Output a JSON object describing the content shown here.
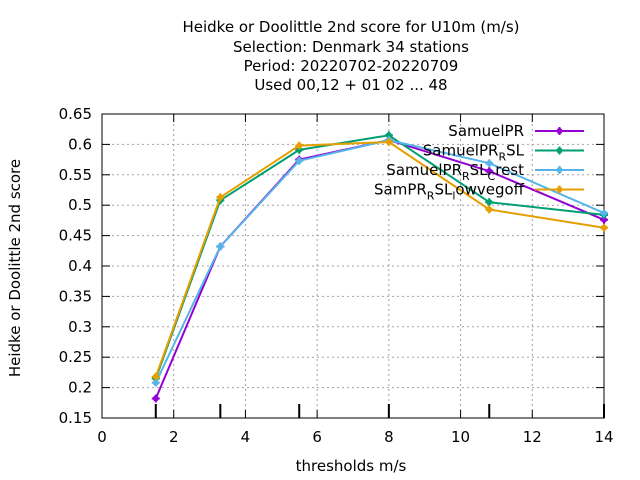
{
  "chart_data": {
    "type": "line",
    "title_lines": [
      "Heidke or Doolittle 2nd score  for U10m (m/s)",
      "Selection: Denmark     34 stations",
      "Period: 20220702-20220709",
      "Used  00,12  + 01 02 ... 48"
    ],
    "xlabel": "thresholds m/s",
    "ylabel": "Heidke or Doolittle 2nd score",
    "xlim": [
      0,
      14
    ],
    "ylim": [
      0.15,
      0.65
    ],
    "xticks": [
      0,
      2,
      4,
      6,
      8,
      10,
      12,
      14
    ],
    "yticks": [
      0.15,
      0.2,
      0.25,
      0.3,
      0.35,
      0.4,
      0.45,
      0.5,
      0.55,
      0.6,
      0.65
    ],
    "grid": true,
    "legend_position": "top-right",
    "threshold_markers": [
      1.5,
      3.3,
      5.5,
      8.0,
      10.8,
      14.0
    ],
    "series": [
      {
        "name": "SamuelPR",
        "name_parts": [
          {
            "text": "SamuelPR",
            "sub": false
          }
        ],
        "color": "#9400d3",
        "x": [
          1.5,
          3.3,
          5.5,
          8.0,
          10.8,
          14.0
        ],
        "values": [
          0.182,
          0.432,
          0.575,
          0.607,
          0.556,
          0.476
        ]
      },
      {
        "name": "SamuelPR_RSL",
        "name_parts": [
          {
            "text": "SamuelPR",
            "sub": false
          },
          {
            "text": "R",
            "sub": true
          },
          {
            "text": "SL",
            "sub": false
          }
        ],
        "color": "#009e73",
        "x": [
          1.5,
          3.3,
          5.5,
          8.0,
          10.8,
          14.0
        ],
        "values": [
          0.215,
          0.508,
          0.591,
          0.615,
          0.505,
          0.484
        ]
      },
      {
        "name": "SamuelPR_RSL_Crest",
        "name_parts": [
          {
            "text": "SamuelPR",
            "sub": false
          },
          {
            "text": "R",
            "sub": true
          },
          {
            "text": "SL",
            "sub": false
          },
          {
            "text": "C",
            "sub": true
          },
          {
            "text": "rest",
            "sub": false
          }
        ],
        "color": "#56b4e9",
        "x": [
          1.5,
          3.3,
          5.5,
          8.0,
          10.8,
          14.0
        ],
        "values": [
          0.208,
          0.432,
          0.573,
          0.607,
          0.569,
          0.487
        ]
      },
      {
        "name": "SamPR_RSL_lowvegoff",
        "name_parts": [
          {
            "text": "SamPR",
            "sub": false
          },
          {
            "text": "R",
            "sub": true
          },
          {
            "text": "SL",
            "sub": false
          },
          {
            "text": "l",
            "sub": true
          },
          {
            "text": "owvegoff",
            "sub": false
          }
        ],
        "color": "#e69f00",
        "x": [
          1.5,
          3.3,
          5.5,
          8.0,
          10.8,
          14.0
        ],
        "values": [
          0.218,
          0.513,
          0.598,
          0.604,
          0.493,
          0.463
        ]
      }
    ]
  }
}
